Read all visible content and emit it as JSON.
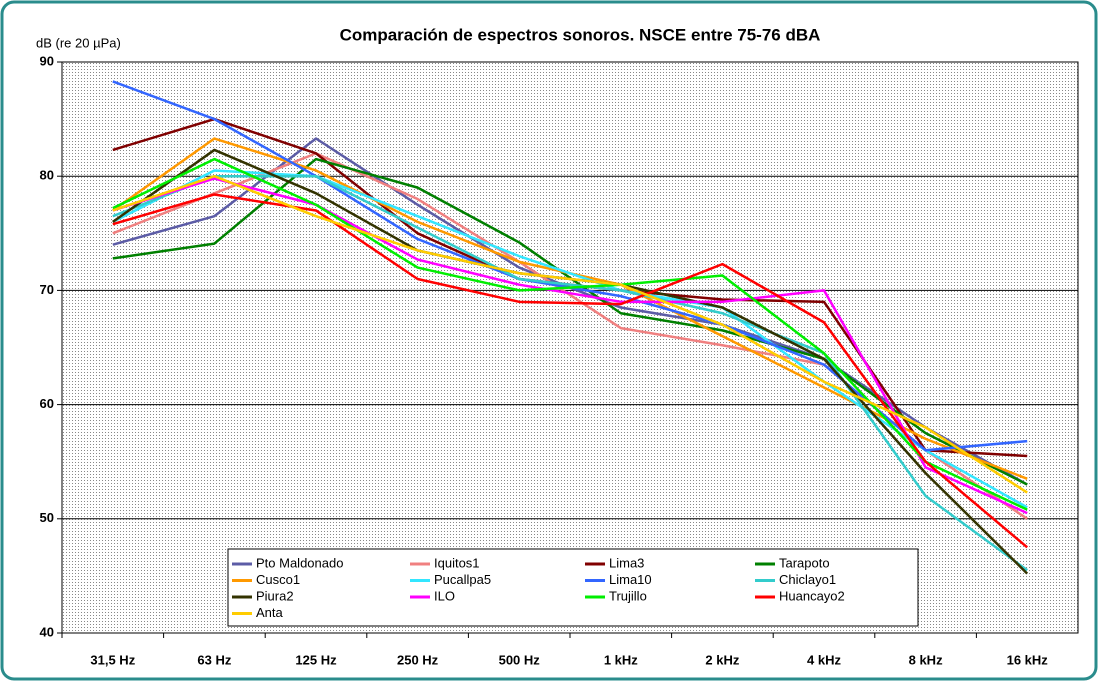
{
  "chart_data": {
    "type": "line",
    "title": "Comparación de espectros sonoros. NSCE entre 75-76 dBA",
    "y_label": "dB (re 20 µPa)",
    "categories": [
      "31,5 Hz",
      "63 Hz",
      "125 Hz",
      "250 Hz",
      "500 Hz",
      "1 kHz",
      "2 kHz",
      "4 kHz",
      "8 kHz",
      "16 kHz"
    ],
    "ylim": [
      40,
      90
    ],
    "yticks": [
      40,
      50,
      60,
      70,
      80,
      90
    ],
    "grid": true,
    "legend": "bottom",
    "series": [
      {
        "name": "Pto Maldonado",
        "color": "#5c5ca6",
        "values": [
          74,
          76.5,
          83.3,
          77.5,
          72,
          68.5,
          67,
          64,
          58,
          53
        ]
      },
      {
        "name": "Iquitos1",
        "color": "#f08080",
        "values": [
          75,
          78.5,
          82,
          78,
          72.5,
          66.7,
          65.2,
          63.5,
          56,
          50
        ]
      },
      {
        "name": "Lima3",
        "color": "#800000",
        "values": [
          82.3,
          85,
          82,
          75,
          71,
          70,
          69.2,
          69,
          56,
          55.5
        ]
      },
      {
        "name": "Tarapoto",
        "color": "#008000",
        "values": [
          72.8,
          74.1,
          81.5,
          79,
          74.2,
          68,
          66.5,
          64,
          57.5,
          53
        ]
      },
      {
        "name": "Cusco1",
        "color": "#ff9900",
        "values": [
          77,
          83.3,
          80.5,
          76,
          72.5,
          70.5,
          66,
          61.5,
          57,
          53.5
        ]
      },
      {
        "name": "Pucallpa5",
        "color": "#33e6ff",
        "values": [
          76,
          80.5,
          80,
          76.5,
          73,
          70,
          68.5,
          62,
          56,
          51
        ]
      },
      {
        "name": "Lima10",
        "color": "#3366ff",
        "values": [
          88.3,
          85,
          80,
          74.5,
          71,
          69.5,
          67,
          63.5,
          56,
          56.8
        ]
      },
      {
        "name": "Chiclayo1",
        "color": "#33cccc",
        "values": [
          76.5,
          80,
          80,
          75.5,
          71,
          70,
          68,
          64.5,
          52,
          45.5
        ]
      },
      {
        "name": "Piura2",
        "color": "#333300",
        "values": [
          76,
          82.3,
          78.5,
          73.5,
          71.5,
          70.5,
          68.5,
          64,
          54,
          45.2
        ]
      },
      {
        "name": "ILO",
        "color": "#ff00ff",
        "values": [
          77,
          79.8,
          77.5,
          72.7,
          70.5,
          69,
          69,
          70,
          54.5,
          50.5
        ]
      },
      {
        "name": "Trujillo",
        "color": "#00ee00",
        "values": [
          77.2,
          81.5,
          77.5,
          72,
          70,
          70.5,
          71.3,
          64.5,
          55,
          50.8
        ]
      },
      {
        "name": "Huancayo2",
        "color": "#ff0000",
        "values": [
          75.8,
          78.4,
          77,
          71,
          69,
          68.8,
          72.3,
          67.2,
          55,
          47.5
        ]
      },
      {
        "name": "Anta",
        "color": "#ffcc00",
        "values": [
          77,
          80,
          76.5,
          73.5,
          71.5,
          70.5,
          67,
          62,
          58,
          52.3
        ]
      }
    ]
  }
}
